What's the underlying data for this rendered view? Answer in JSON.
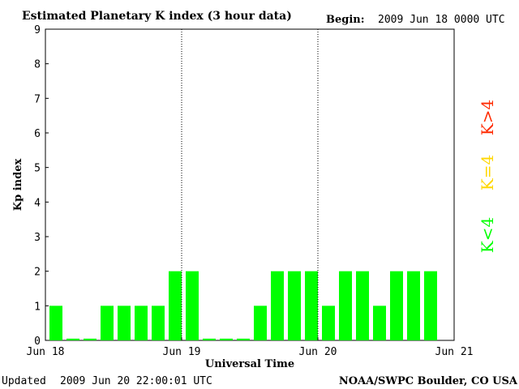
{
  "header": {
    "title": "Estimated Planetary K index (3 hour data)",
    "begin_label": "Begin:",
    "begin_value": "2009 Jun 18 0000 UTC"
  },
  "footer": {
    "updated_label": "Updated",
    "updated_value": "2009 Jun 20 22:00:01 UTC",
    "source": "NOAA/SWPC Boulder, CO USA"
  },
  "legend": {
    "items": [
      {
        "label": "K<4",
        "color": "#00ff00"
      },
      {
        "label": "K=4",
        "color": "#ffd700"
      },
      {
        "label": "K>4",
        "color": "#ff2a00"
      }
    ]
  },
  "chart_data": {
    "type": "bar",
    "title": "Estimated Planetary K index (3 hour data)",
    "xlabel": "Universal Time",
    "ylabel": "Kp index",
    "ylim": [
      0,
      9
    ],
    "yticks": [
      "0",
      "1",
      "2",
      "3",
      "4",
      "5",
      "6",
      "7",
      "8",
      "9"
    ],
    "xticks": [
      "Jun 18",
      "Jun 19",
      "Jun 20",
      "Jun 21"
    ],
    "bar_color": "#00ff00",
    "values": [
      1,
      0.05,
      0.05,
      1,
      1,
      1,
      1,
      2,
      2,
      0.05,
      0.05,
      0.05,
      1,
      2,
      2,
      2,
      1,
      2,
      2,
      1,
      2,
      2,
      2
    ]
  }
}
